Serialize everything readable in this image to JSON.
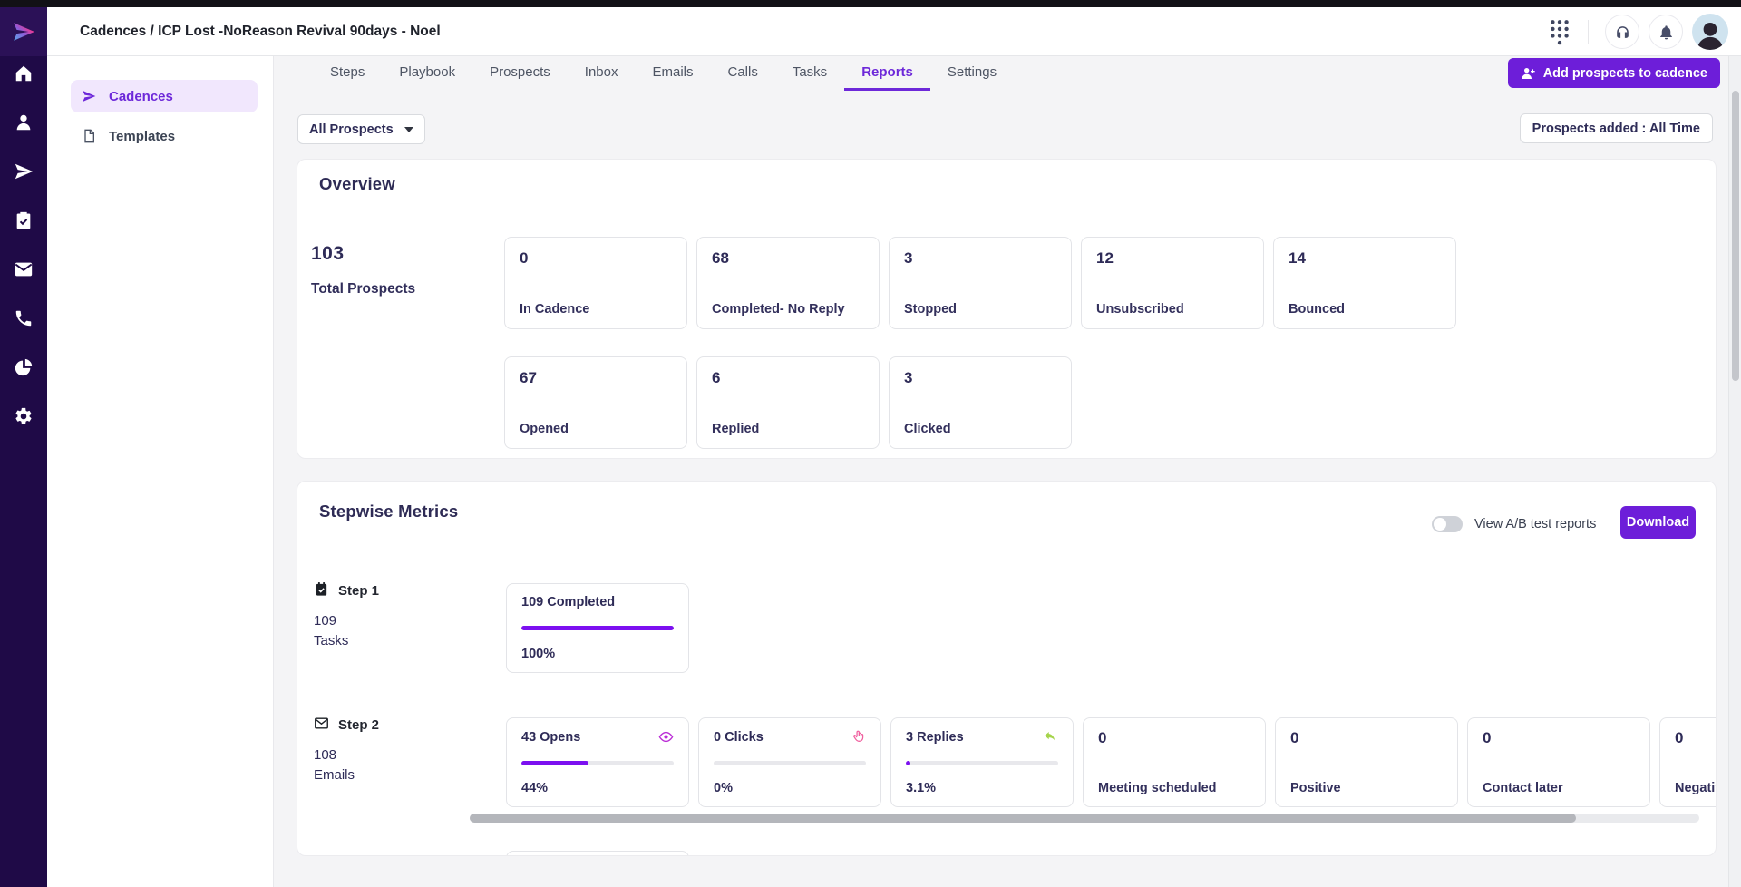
{
  "topbar": {
    "title": "Cadences / ICP Lost -NoReason Revival 90days - Noel",
    "icons": [
      "dialpad-icon",
      "headset-icon",
      "bell-icon",
      "user-avatar"
    ]
  },
  "sidebar": {
    "items": [
      "home-icon",
      "prospects-icon",
      "cadence-icon",
      "tasks-icon",
      "mail-icon",
      "phone-icon",
      "reports-icon",
      "settings-icon"
    ]
  },
  "subsidebar": {
    "items": [
      {
        "label": "Cadences",
        "icon": "cadence-icon",
        "active": true
      },
      {
        "label": "Templates",
        "icon": "template-icon",
        "active": false
      }
    ]
  },
  "nav_tabs": {
    "active": "Reports",
    "items": [
      "Steps",
      "Playbook",
      "Prospects",
      "Inbox",
      "Emails",
      "Calls",
      "Tasks",
      "Reports",
      "Settings"
    ]
  },
  "toolbar": {
    "add_button": "Add prospects to cadence",
    "filter_dropdown": "All Prospects",
    "date_filter": "Prospects added : All Time"
  },
  "overview": {
    "title": "Overview",
    "total": {
      "value": "103",
      "label": "Total Prospects"
    },
    "cards": [
      {
        "value": "0",
        "label": "In Cadence"
      },
      {
        "value": "68",
        "label": "Completed- No Reply"
      },
      {
        "value": "3",
        "label": "Stopped"
      },
      {
        "value": "12",
        "label": "Unsubscribed"
      },
      {
        "value": "14",
        "label": "Bounced"
      },
      {
        "value": "67",
        "label": "Opened"
      },
      {
        "value": "6",
        "label": "Replied"
      },
      {
        "value": "3",
        "label": "Clicked"
      }
    ]
  },
  "stepwise": {
    "title": "Stepwise Metrics",
    "ab_toggle_label": "View A/B test reports",
    "ab_toggle_on": false,
    "download_label": "Download",
    "steps": [
      {
        "name": "Step 1",
        "icon": "calendar-check-icon",
        "count": "109",
        "unit": "Tasks",
        "metrics": [
          {
            "label": "109 Completed",
            "percent": "100%",
            "progress": 100
          }
        ]
      },
      {
        "name": "Step 2",
        "icon": "envelope-icon",
        "count": "108",
        "unit": "Emails",
        "metrics": [
          {
            "label": "43 Opens",
            "icon": "eye-icon",
            "icon_color": "#bb2fd6",
            "percent": "44%",
            "progress": 44
          },
          {
            "label": "0 Clicks",
            "icon": "click-icon",
            "icon_color": "#f0609f",
            "percent": "0%",
            "progress": 0
          },
          {
            "label": "3 Replies",
            "icon": "reply-icon",
            "icon_color": "#a5d44b",
            "percent": "3.1%",
            "progress": 3
          },
          {
            "value": "0",
            "label": "Meeting scheduled"
          },
          {
            "value": "0",
            "label": "Positive"
          },
          {
            "value": "0",
            "label": "Contact later"
          },
          {
            "value": "0",
            "label": "Negative"
          }
        ]
      }
    ]
  },
  "colors": {
    "accent": "#6d1ed9",
    "progress_bar": "#7c10f0",
    "active_item_bg": "#f1e7fd",
    "sidebar_bg": "#1f0a47",
    "text_navy": "#2e2b57"
  }
}
